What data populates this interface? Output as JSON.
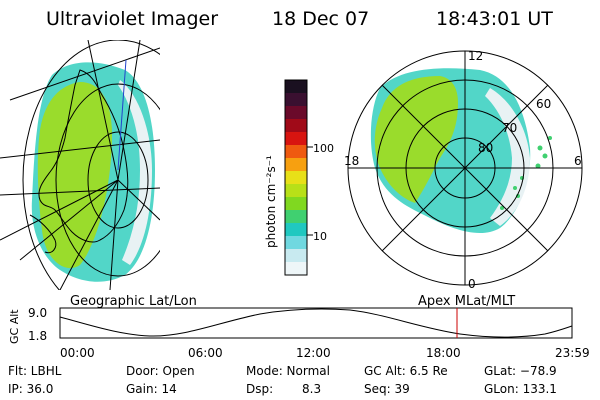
{
  "header": {
    "instrument": "Ultraviolet Imager",
    "date": "18 Dec 07",
    "time": "18:43:01 UT"
  },
  "colorbar": {
    "unit_label": "photon cm⁻²s⁻¹",
    "ticks": [
      "100",
      "10"
    ],
    "colors": [
      "#1a1020",
      "#3a1030",
      "#6a0a2a",
      "#a00a18",
      "#d81410",
      "#ef5a10",
      "#f7a010",
      "#e8e018",
      "#b8e018",
      "#80d820",
      "#40d070",
      "#20c8c0",
      "#70d8e0",
      "#c8eaf0",
      "#eef6f8"
    ]
  },
  "left_panel": {
    "caption": "Geographic Lat/Lon"
  },
  "right_panel": {
    "caption": "Apex  MLat/MLT",
    "mlt_labels": {
      "top": "12",
      "left": "18",
      "right": "6",
      "bottom": "0"
    },
    "lat_labels": [
      "80",
      "70",
      "60"
    ]
  },
  "timeline": {
    "axis_label": "GC Alt",
    "y_ticks": [
      "9.0",
      "1.8"
    ],
    "x_ticks": [
      "00:00",
      "06:00",
      "12:00",
      "18:00",
      "23:59"
    ]
  },
  "status": {
    "flt": "Flt: LBHL",
    "ip": "IP: 36.0",
    "door": "Door: Open",
    "gain": "Gain: 14",
    "mode": "Mode: Normal",
    "dsp_label": "Dsp:",
    "dsp_value": "8.3",
    "gc_alt": "GC Alt: 6.5 Re",
    "seq": "Seq: 39",
    "glat": "GLat: −78.9",
    "glon": "GLon: 133.1"
  }
}
